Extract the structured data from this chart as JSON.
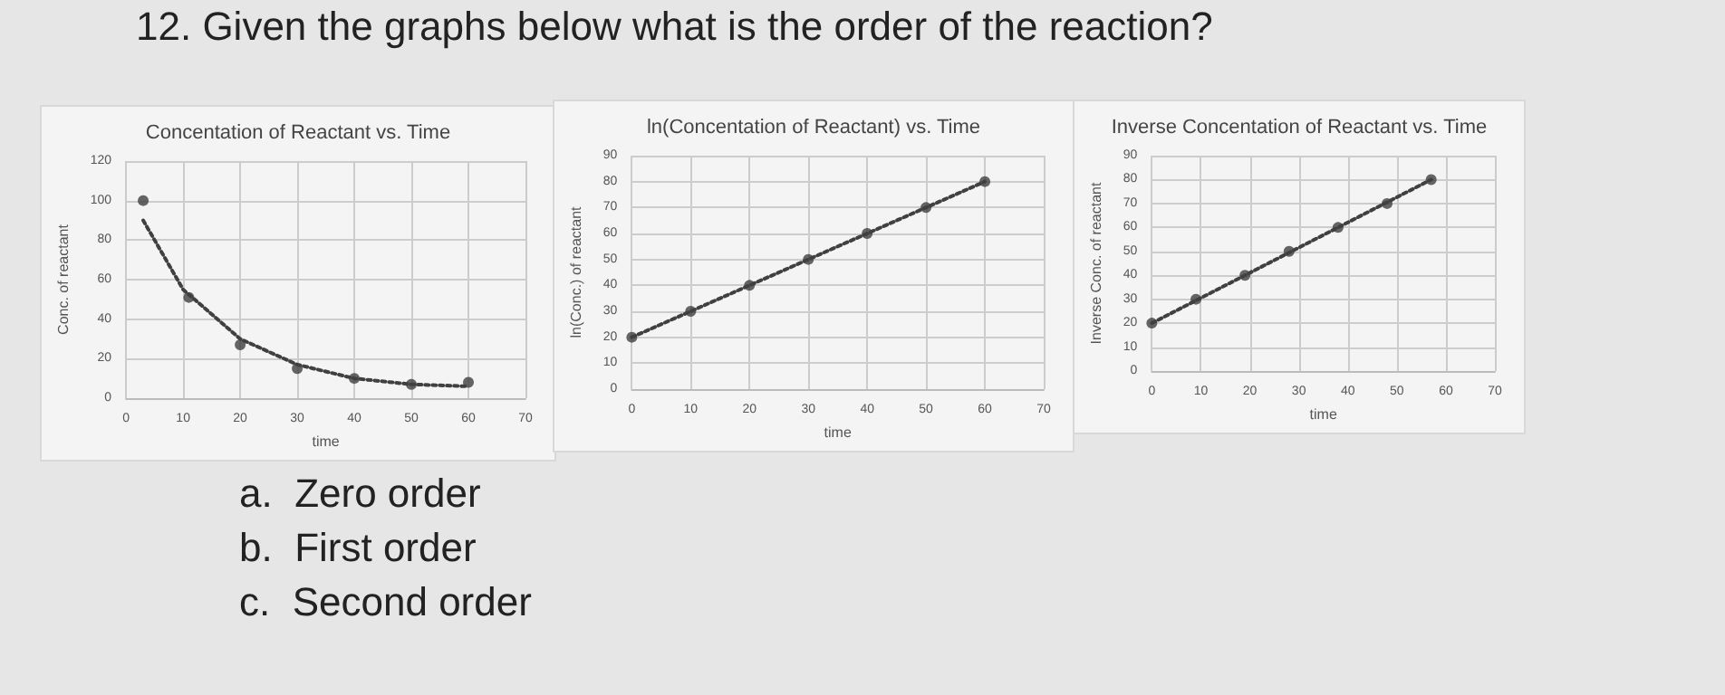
{
  "chart_data": [
    {
      "type": "other",
      "title": "12. Given the graphs below what is the order of the reaction?",
      "annotations": [
        "a.  Zero order",
        "b.  First order",
        "c.  Second order"
      ]
    },
    {
      "type": "scatter",
      "title": "Concentation of Reactant vs. Time",
      "xlabel": "time",
      "ylabel": "Conc. of reactant",
      "xlim": [
        0,
        70
      ],
      "xticks": [
        0,
        10,
        20,
        30,
        40,
        50,
        60,
        70
      ],
      "ylim": [
        0,
        120
      ],
      "yticks": [
        0,
        20,
        40,
        60,
        80,
        100,
        120
      ],
      "grid": true,
      "marker": "circle",
      "series": [
        {
          "color": "#404040",
          "x": [
            3,
            11,
            20,
            30,
            40,
            50,
            60
          ],
          "values": [
            100,
            51,
            27,
            15,
            10,
            7,
            8
          ]
        },
        {
          "type": "line",
          "line_style": "dotted",
          "marker": "none",
          "color": "#404040",
          "x": [
            3,
            10,
            20,
            30,
            40,
            50,
            60
          ],
          "values": [
            90,
            55,
            30,
            17,
            10,
            7,
            6
          ]
        }
      ]
    },
    {
      "type": "scatter",
      "title": "ln(Concentation of Reactant) vs. Time",
      "xlabel": "time",
      "ylabel": "ln(Conc.) of reactant",
      "xlim": [
        0,
        70
      ],
      "xticks": [
        0,
        10,
        20,
        30,
        40,
        50,
        60,
        70
      ],
      "ylim": [
        0,
        90
      ],
      "yticks": [
        0,
        10,
        20,
        30,
        40,
        50,
        60,
        70,
        80,
        90
      ],
      "grid": true,
      "marker": "circle",
      "series": [
        {
          "color": "#404040",
          "x": [
            0,
            10,
            20,
            30,
            40,
            50,
            60
          ],
          "values": [
            20,
            30,
            40,
            50,
            60,
            70,
            80
          ]
        },
        {
          "type": "line",
          "line_style": "dotted",
          "marker": "none",
          "color": "#404040",
          "x": [
            0,
            60
          ],
          "values": [
            20,
            80
          ]
        }
      ]
    },
    {
      "type": "scatter",
      "title": "Inverse Concentation of Reactant vs. Time",
      "xlabel": "time",
      "ylabel": "Inverse Conc. of reactant",
      "xlim": [
        0,
        70
      ],
      "xticks": [
        0,
        10,
        20,
        30,
        40,
        50,
        60,
        70
      ],
      "ylim": [
        0,
        90
      ],
      "yticks": [
        0,
        10,
        20,
        30,
        40,
        50,
        60,
        70,
        80,
        90
      ],
      "grid": true,
      "marker": "circle",
      "series": [
        {
          "color": "#404040",
          "x": [
            0,
            9,
            19,
            28,
            38,
            48,
            57
          ],
          "values": [
            20,
            30,
            40,
            50,
            60,
            70,
            80
          ]
        },
        {
          "type": "line",
          "line_style": "dotted",
          "marker": "none",
          "color": "#404040",
          "x": [
            0,
            57
          ],
          "values": [
            20,
            80
          ]
        }
      ]
    }
  ]
}
